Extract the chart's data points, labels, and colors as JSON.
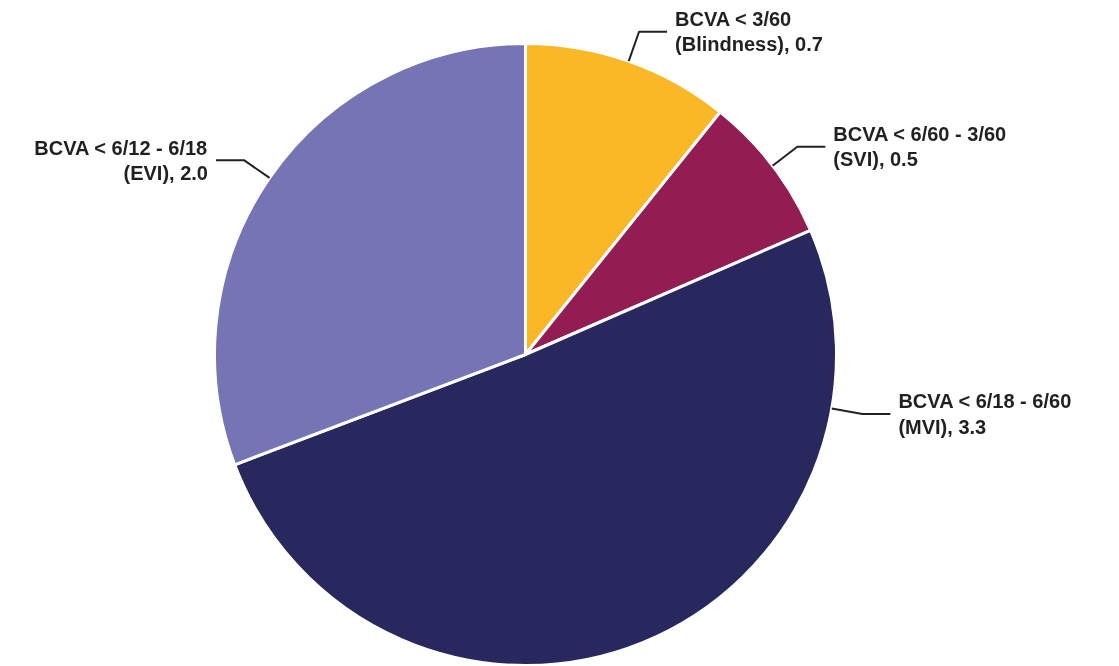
{
  "chart_data": {
    "type": "pie",
    "categories": [
      "BCVA < 3/60 (Blindness)",
      "BCVA < 6/60 - 3/60 (SVI)",
      "BCVA < 6/18 - 6/60 (MVI)",
      "BCVA < 6/12 - 6/18 (EVI)"
    ],
    "values": [
      0.7,
      0.5,
      3.3,
      2.0
    ],
    "value_labels": [
      "0.7",
      "0.5",
      "3.3",
      "2.0"
    ],
    "colors": [
      "#fbb826",
      "#931c52",
      "#29285e",
      "#7674b4"
    ]
  }
}
